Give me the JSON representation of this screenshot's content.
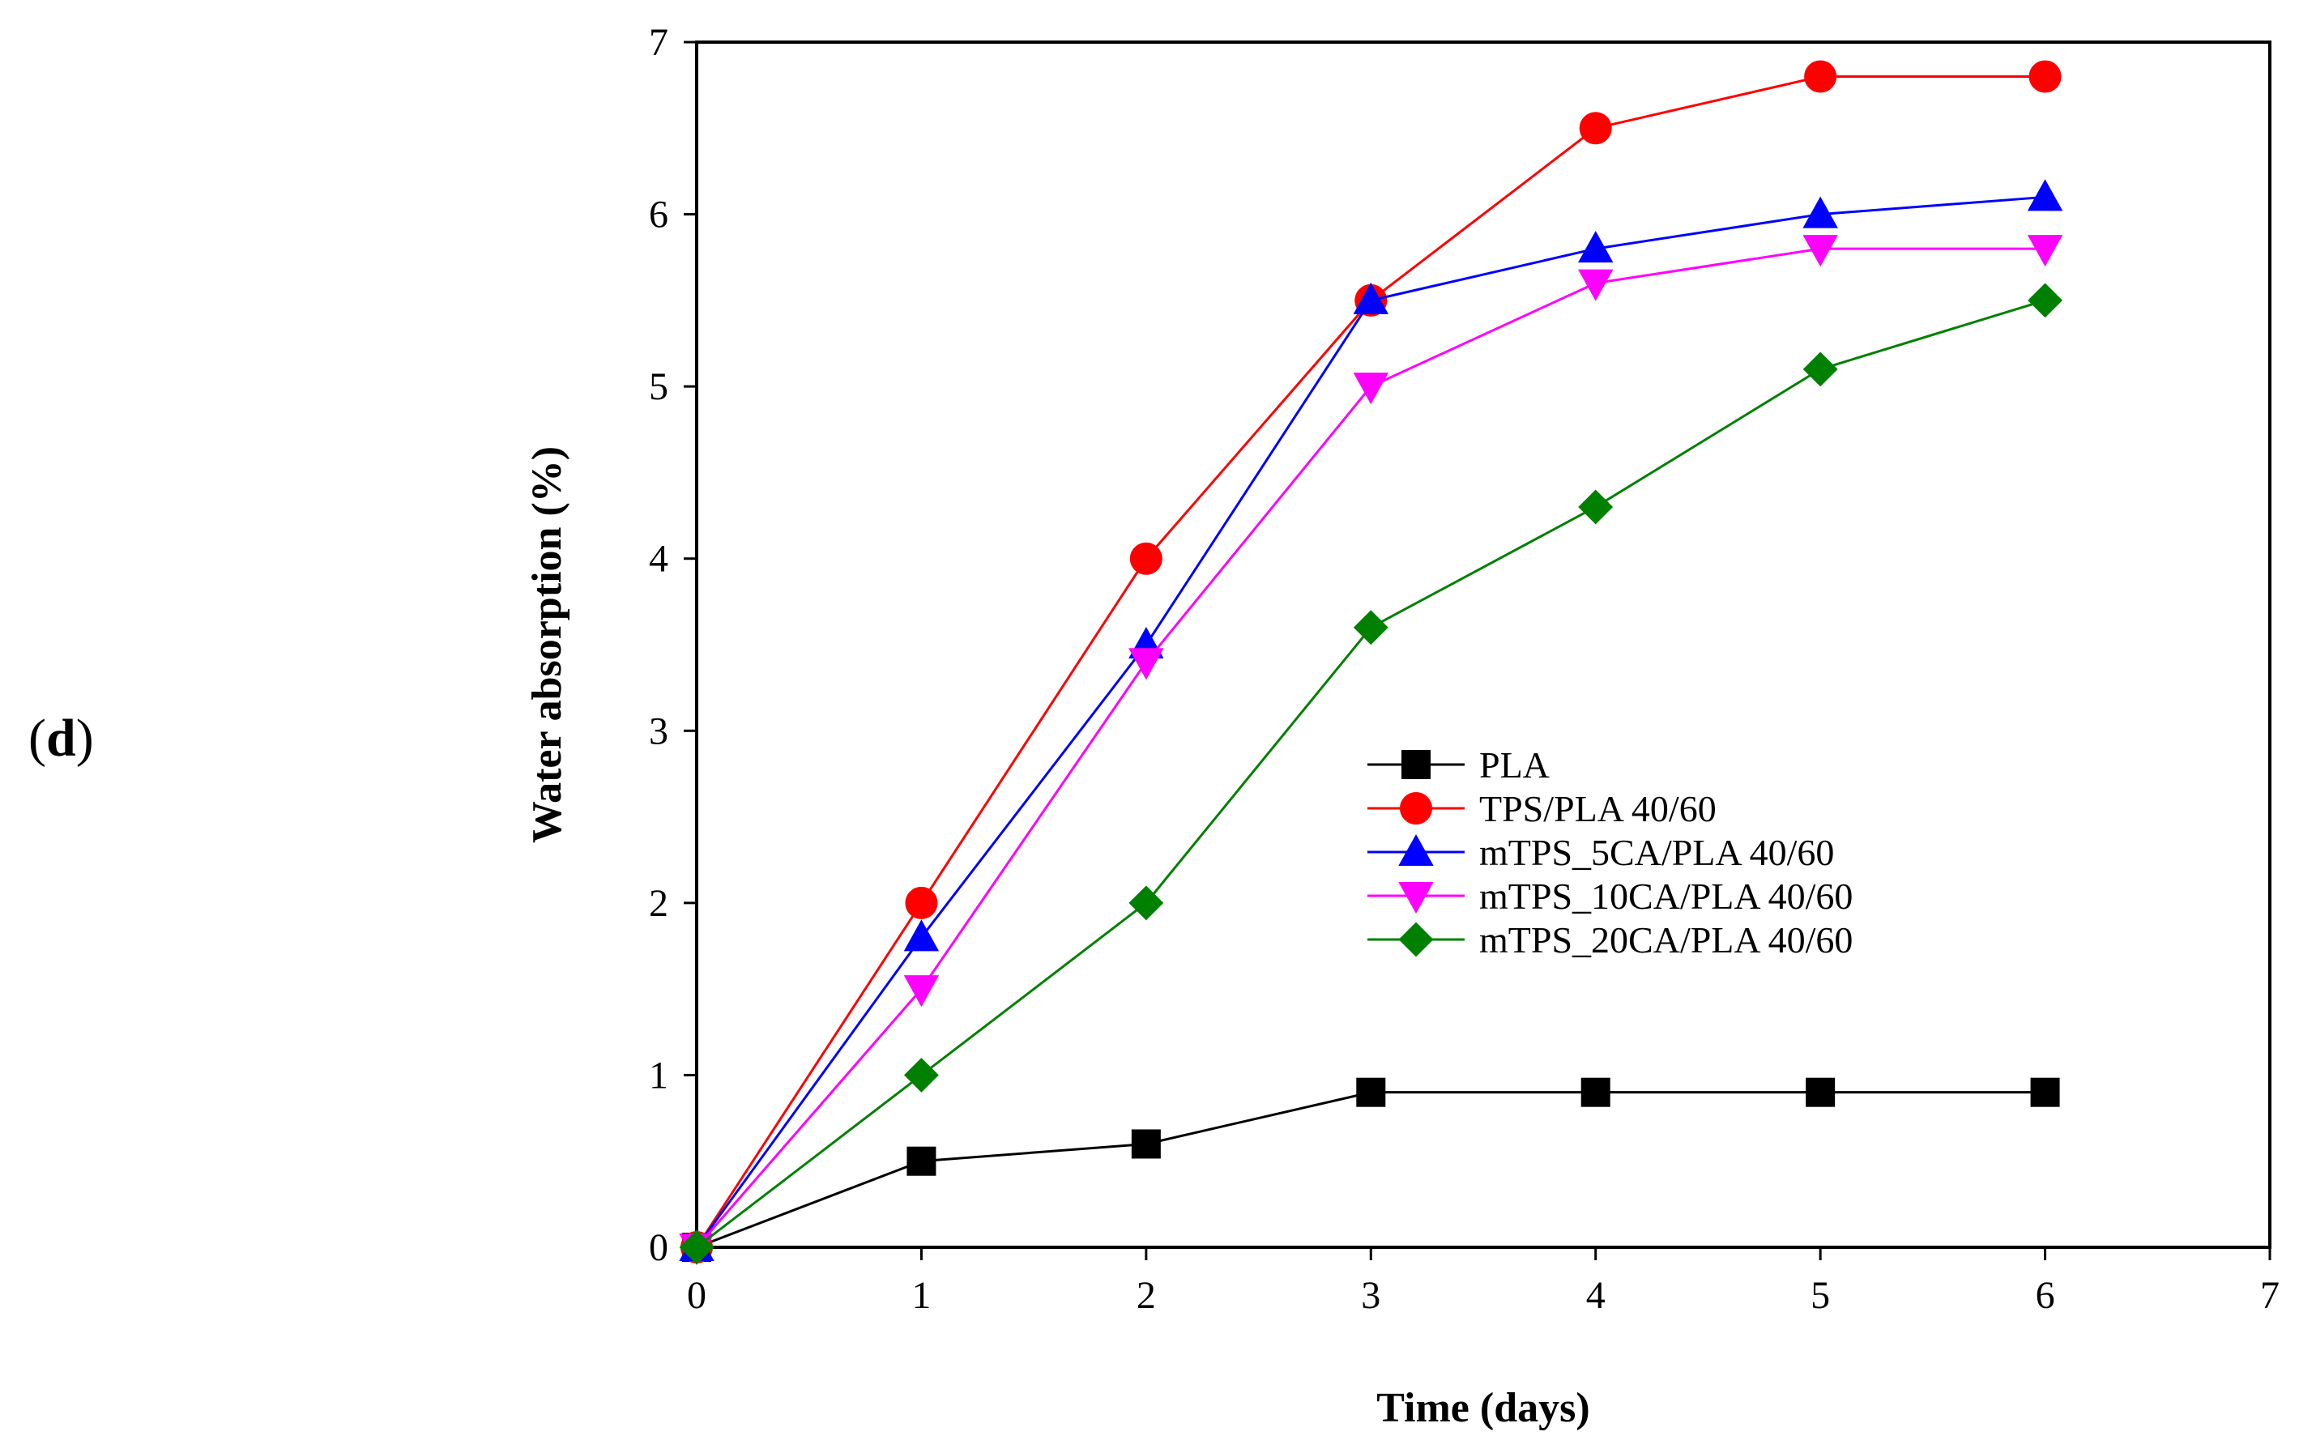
{
  "panel_label": {
    "open": "(",
    "letter": "d",
    "close": ")"
  },
  "chart_data": {
    "type": "line",
    "title": "",
    "xlabel": "Time (days)",
    "ylabel": "Water absorption (%)",
    "xlim": [
      0,
      7
    ],
    "ylim": [
      0,
      7
    ],
    "xticks": [
      "0",
      "1",
      "2",
      "3",
      "4",
      "5",
      "6",
      "7"
    ],
    "yticks": [
      "0",
      "1",
      "2",
      "3",
      "4",
      "5",
      "6",
      "7"
    ],
    "grid": false,
    "legend_position": "center-right",
    "x": [
      0,
      1,
      2,
      3,
      4,
      5,
      6
    ],
    "series": [
      {
        "name": "PLA",
        "color": "#000000",
        "marker": "square",
        "values": [
          0,
          0.5,
          0.6,
          0.9,
          0.9,
          0.9,
          0.9
        ]
      },
      {
        "name": "TPS/PLA 40/60",
        "color": "#ff0000",
        "marker": "circle",
        "values": [
          0,
          2.0,
          4.0,
          5.5,
          6.5,
          6.8,
          6.8
        ]
      },
      {
        "name": "mTPS_5CA/PLA 40/60",
        "color": "#0000ff",
        "marker": "triangle-up",
        "values": [
          0,
          1.8,
          3.5,
          5.5,
          5.8,
          6.0,
          6.1
        ]
      },
      {
        "name": "mTPS_10CA/PLA 40/60",
        "color": "#ff00ff",
        "marker": "triangle-down",
        "values": [
          0,
          1.5,
          3.4,
          5.0,
          5.6,
          5.8,
          5.8
        ]
      },
      {
        "name": "mTPS_20CA/PLA 40/60",
        "color": "#008000",
        "marker": "diamond",
        "values": [
          0,
          1.0,
          2.0,
          3.6,
          4.3,
          5.1,
          5.5
        ]
      }
    ]
  }
}
